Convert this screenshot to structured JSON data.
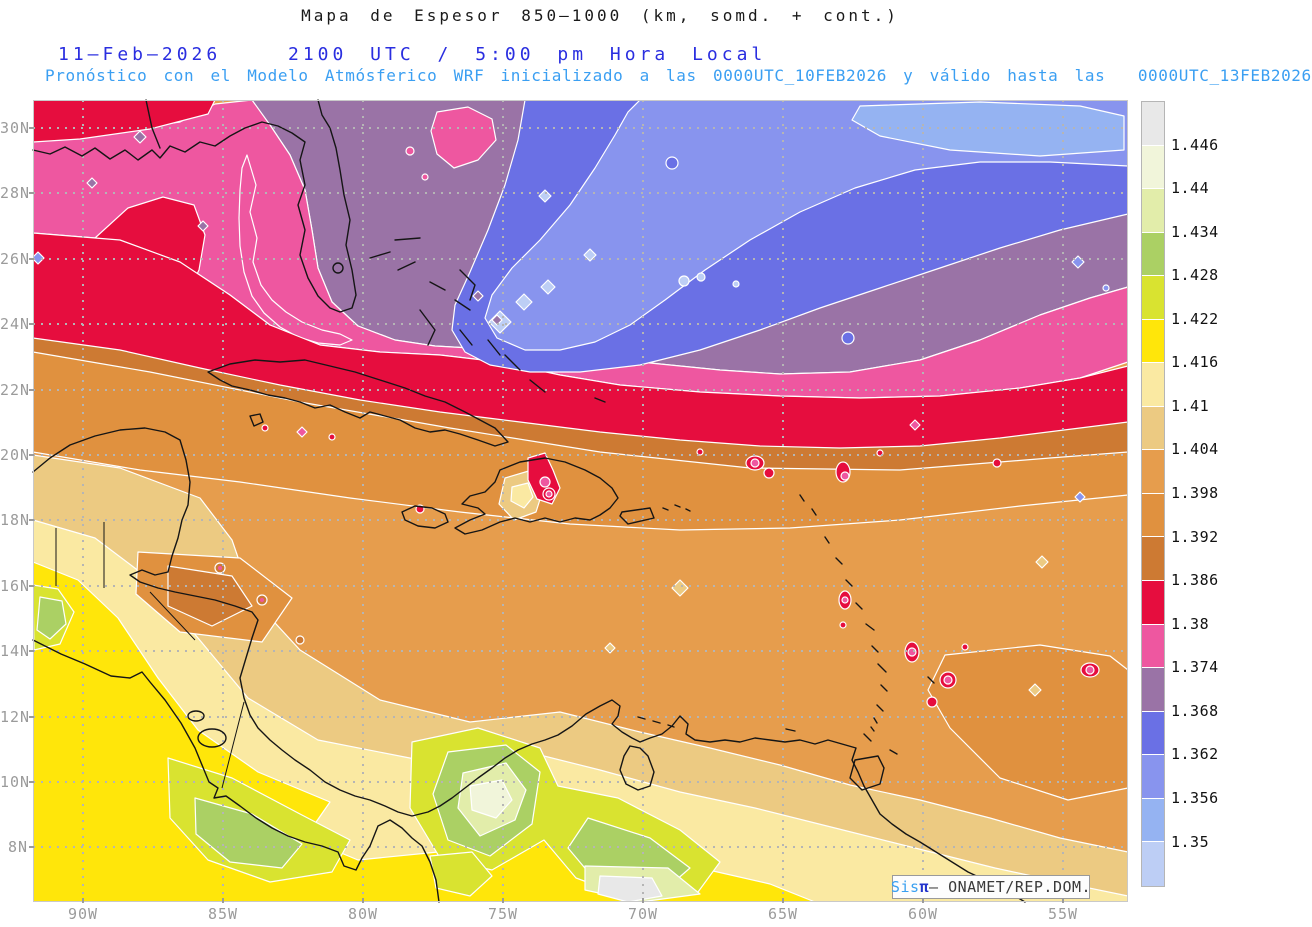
{
  "header": {
    "title": "Mapa de Espesor 850–1000 (km, somd. + cont.)",
    "date": "11–Feb–2026",
    "time": "2100 UTC / 5:00 pm Hora Local",
    "forecast": "Pronóstico con el Modelo Atmósferico WRF inicializado a las 0000UTC_10FEB2026 y válido hasta las  0000UTC_13FEB2026"
  },
  "axes": {
    "lat_labels": [
      "30N",
      "28N",
      "26N",
      "24N",
      "22N",
      "20N",
      "18N",
      "16N",
      "14N",
      "12N",
      "10N",
      "8N"
    ],
    "lon_labels": [
      "90W",
      "85W",
      "80W",
      "75W",
      "70W",
      "65W",
      "60W",
      "55W"
    ]
  },
  "colorbar": {
    "labels": [
      "1.446",
      "1.44",
      "1.434",
      "1.428",
      "1.422",
      "1.416",
      "1.41",
      "1.404",
      "1.398",
      "1.392",
      "1.386",
      "1.38",
      "1.374",
      "1.368",
      "1.362",
      "1.356",
      "1.35"
    ],
    "colors": [
      "#e8e8e8",
      "#f1f5da",
      "#e2edaa",
      "#abd064",
      "#d9e330",
      "#ffe60a",
      "#fae9a2",
      "#ecca82",
      "#e69d4d",
      "#e0913f",
      "#cd7a33",
      "#e60d3e",
      "#ee57a0",
      "#9a73a6",
      "#6a70e5",
      "#8894ee",
      "#95b3f2",
      "#bdcef5"
    ]
  },
  "attribution": {
    "brand_prefix": "Sis",
    "brand_symbol": "π",
    "text": "– ONAMET/REP.DOM."
  },
  "colors": {
    "title_text": "#1a1a1a",
    "date_text": "#2a2ee0",
    "forecast_text": "#3b9ff2",
    "axis_label": "#9b9b9b",
    "grid": "#b5b5b5",
    "coastline": "#151515",
    "contour_line": "#ffffff"
  }
}
